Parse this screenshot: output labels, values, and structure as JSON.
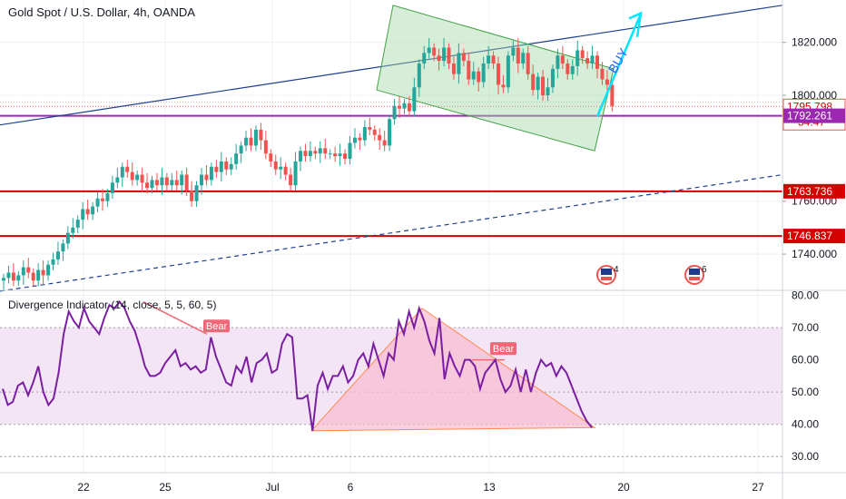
{
  "header": {
    "title": "Gold Spot / U.S. Dollar, 4h, OANDA"
  },
  "colors": {
    "up": "#26a69a",
    "down": "#ef5350",
    "level_red": "#d50000",
    "level_purple": "#9c27b0",
    "channel_fill": "#a5d6a7",
    "channel_stroke": "#43a047",
    "trendline": "#1e3f8f",
    "buy_arrow": "#00e5ff",
    "osc_line": "#7b1fa2",
    "osc_band": "#f3e5f5",
    "triangle_fill": "#f8bbd0",
    "triangle_stroke": "#ff8a50",
    "bear_label": "#f06878"
  },
  "price_axis": {
    "ticks": [
      "1820.000",
      "1800.000",
      "1760.000",
      "1740.000"
    ],
    "range": [
      1727,
      1836
    ]
  },
  "price_tags": [
    {
      "id": "last",
      "text": "1795.798",
      "sub": "34:47",
      "style": "red-outline"
    },
    {
      "id": "purple",
      "text": "1792.261",
      "style": "purple"
    },
    {
      "id": "r1",
      "text": "1763.736",
      "style": "red"
    },
    {
      "id": "r2",
      "text": "1746.837",
      "style": "red"
    }
  ],
  "levels": [
    {
      "price": 1792.261,
      "color": "purple"
    },
    {
      "price": 1763.736,
      "color": "red"
    },
    {
      "price": 1746.837,
      "color": "red"
    }
  ],
  "x_axis": {
    "labels": [
      "22",
      "25",
      "Jul",
      "6",
      "13",
      "20",
      "27"
    ]
  },
  "annotations": {
    "buy_text": "BUY",
    "earnings_1": "4",
    "earnings_2": "6"
  },
  "indicator": {
    "title": "Divergence Indicator (14, close, 5, 5, 60, 5)",
    "ticks": [
      "80.00",
      "70.00",
      "60.00",
      "50.00",
      "40.00",
      "30.00"
    ],
    "range": [
      25,
      81
    ],
    "band": [
      40,
      70
    ],
    "bear_labels": [
      "Bear",
      "Bear"
    ]
  },
  "chart_data": {
    "type": "candlestick",
    "series": [
      {
        "name": "XAUUSD 4h",
        "closes": [
          1731,
          1733,
          1730,
          1732,
          1735,
          1733,
          1730,
          1734,
          1732,
          1736,
          1738,
          1741,
          1744,
          1748,
          1750,
          1753,
          1757,
          1755,
          1758,
          1761,
          1760,
          1763,
          1767,
          1769,
          1773,
          1771,
          1768,
          1770,
          1767,
          1765,
          1768,
          1766,
          1769,
          1766,
          1768,
          1766,
          1770,
          1764,
          1760,
          1766,
          1770,
          1768,
          1773,
          1771,
          1775,
          1772,
          1774,
          1778,
          1781,
          1784,
          1781,
          1787,
          1783,
          1778,
          1775,
          1772,
          1773,
          1770,
          1766,
          1775,
          1779,
          1777,
          1779,
          1778,
          1780,
          1778,
          1778,
          1777,
          1778,
          1776,
          1782,
          1784,
          1783,
          1788,
          1787,
          1785,
          1783,
          1781,
          1791,
          1796,
          1795,
          1797,
          1794,
          1803,
          1812,
          1816,
          1818,
          1815,
          1813,
          1818,
          1812,
          1808,
          1816,
          1813,
          1806,
          1809,
          1805,
          1812,
          1815,
          1812,
          1804,
          1803,
          1815,
          1818,
          1812,
          1816,
          1808,
          1802,
          1807,
          1800,
          1803,
          1810,
          1815,
          1812,
          1808,
          1811,
          1817,
          1814,
          1812,
          1815,
          1810,
          1806,
          1804,
          1796
        ]
      }
    ],
    "x_labels": [
      "22",
      "25",
      "Jul",
      "6",
      "13",
      "20",
      "27"
    ],
    "y_ticks": [
      1740,
      1760,
      1800,
      1820
    ],
    "ylim": [
      1727,
      1836
    ],
    "oscillator": {
      "name": "Divergence Indicator (14, close, 5, 5, 60, 5)",
      "values": [
        51,
        46,
        47,
        52,
        53,
        49,
        53,
        58,
        50,
        46,
        48,
        56,
        68,
        75,
        72,
        70,
        76,
        72,
        70,
        68,
        73,
        77,
        76,
        78,
        76,
        72,
        69,
        64,
        58,
        55,
        55,
        56,
        59,
        61,
        63,
        58,
        59,
        57,
        58,
        56,
        57,
        67,
        61,
        57,
        53,
        52,
        58,
        56,
        61,
        53,
        59,
        60,
        62,
        56,
        57,
        65,
        68,
        67,
        48,
        48,
        49,
        38,
        52,
        56,
        51,
        55,
        55,
        58,
        53,
        55,
        60,
        62,
        58,
        65,
        60,
        55,
        62,
        60,
        72,
        68,
        75,
        70,
        76,
        72,
        66,
        62,
        73,
        54,
        62,
        58,
        55,
        60,
        60,
        58,
        51,
        56,
        58,
        60,
        54,
        50,
        52,
        57,
        50,
        57,
        50,
        56,
        60,
        58,
        59,
        55,
        58,
        56,
        52,
        48,
        44,
        41,
        39
      ],
      "band": [
        40,
        70
      ],
      "ylim": [
        25,
        81
      ]
    }
  }
}
